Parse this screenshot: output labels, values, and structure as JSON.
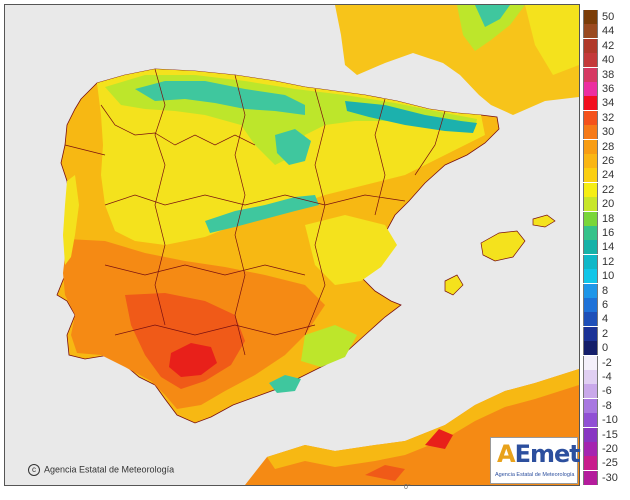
{
  "credit_text": "Agencia Estatal de Meteorología",
  "logo": {
    "brand_a": "A",
    "brand_rest": "Emet",
    "subtitle": "Agencia Estatal de Meteorología"
  },
  "bottom_tick": "0°",
  "colors": {
    "sea": "#e9e9e9",
    "land_base": "#f7b813",
    "hot": "#f58a14",
    "very_hot": "#f05a18",
    "extreme": "#e8201a",
    "mild": "#f4e21d",
    "cool": "#bde62b",
    "cold": "#3fc79e",
    "coldest": "#1cb1ad",
    "borders": "#7a1010"
  },
  "legend": [
    {
      "label": "50",
      "color": "#7b3d08"
    },
    {
      "label": "44",
      "color": "#9a4a20"
    },
    {
      "label": "42",
      "color": "#b03a2a"
    },
    {
      "label": "40",
      "color": "#c43a3a"
    },
    {
      "label": "38",
      "color": "#d63a63"
    },
    {
      "label": "36",
      "color": "#ec2fa0"
    },
    {
      "label": "34",
      "color": "#f20f1f"
    },
    {
      "label": "32",
      "color": "#f4521c"
    },
    {
      "label": "30",
      "color": "#f67a18"
    },
    {
      "label": "28",
      "color": "#f89d14"
    },
    {
      "label": "26",
      "color": "#fab614"
    },
    {
      "label": "24",
      "color": "#fbcf12"
    },
    {
      "label": "22",
      "color": "#f6ee14"
    },
    {
      "label": "20",
      "color": "#c8e62a"
    },
    {
      "label": "18",
      "color": "#7ad63a"
    },
    {
      "label": "16",
      "color": "#36c28a"
    },
    {
      "label": "14",
      "color": "#17b2a8"
    },
    {
      "label": "12",
      "color": "#10b8c8"
    },
    {
      "label": "10",
      "color": "#12c6e8"
    },
    {
      "label": "8",
      "color": "#1f96e8"
    },
    {
      "label": "6",
      "color": "#1f72d8"
    },
    {
      "label": "4",
      "color": "#1e4fb8"
    },
    {
      "label": "2",
      "color": "#1b3296"
    },
    {
      "label": "0",
      "color": "#141e6a"
    },
    {
      "label": "-2",
      "color": "#f4f0fa"
    },
    {
      "label": "-4",
      "color": "#e0cff2"
    },
    {
      "label": "-6",
      "color": "#c9a8ea"
    },
    {
      "label": "-8",
      "color": "#a878e0"
    },
    {
      "label": "-10",
      "color": "#9050d4"
    },
    {
      "label": "-15",
      "color": "#8836c2"
    },
    {
      "label": "-20",
      "color": "#a424b0"
    },
    {
      "label": "-25",
      "color": "#c81c8c"
    },
    {
      "label": "-30",
      "color": "#b41c9c"
    }
  ]
}
